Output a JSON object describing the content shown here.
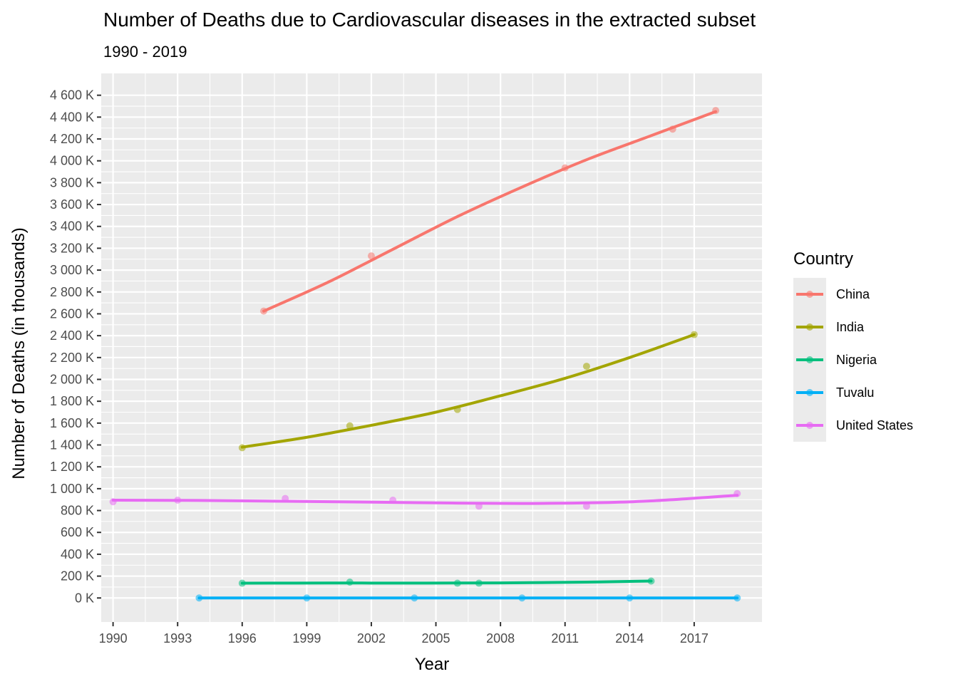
{
  "chart_data": {
    "type": "line",
    "title": "Number of Deaths due to Cardiovascular diseases in the extracted subset",
    "subtitle": "1990 - 2019",
    "xlabel": "Year",
    "ylabel": "Number of Deaths (in thousands)",
    "xlim": [
      1989.45,
      2020.15
    ],
    "ylim": [
      -220,
      4800
    ],
    "x_ticks": [
      1990,
      1993,
      1996,
      1999,
      2002,
      2005,
      2008,
      2011,
      2014,
      2017
    ],
    "y_ticks": [
      0,
      200,
      400,
      600,
      800,
      1000,
      1200,
      1400,
      1600,
      1800,
      2000,
      2200,
      2400,
      2600,
      2800,
      3000,
      3200,
      3400,
      3600,
      3800,
      4000,
      4200,
      4400,
      4600
    ],
    "y_tick_labels": [
      "0 K",
      "200 K",
      "400 K",
      "600 K",
      "800 K",
      "1 000 K",
      "1 200 K",
      "1 400 K",
      "1 600 K",
      "1 800 K",
      "2 000 K",
      "2 200 K",
      "2 400 K",
      "2 600 K",
      "2 800 K",
      "3 000 K",
      "3 200 K",
      "3 400 K",
      "3 600 K",
      "3 800 K",
      "4 000 K",
      "4 200 K",
      "4 400 K",
      "4 600 K"
    ],
    "grid": true,
    "legend": {
      "title": "Country",
      "position": "right"
    },
    "series": [
      {
        "name": "China",
        "color": "#F8766D",
        "points": [
          [
            1997,
            2625
          ],
          [
            2002,
            3130
          ],
          [
            2011,
            3935
          ],
          [
            2016,
            4290
          ],
          [
            2018,
            4460
          ]
        ],
        "trend": [
          [
            1997,
            2625
          ],
          [
            2000,
            2890
          ],
          [
            2003,
            3190
          ],
          [
            2006,
            3490
          ],
          [
            2009,
            3760
          ],
          [
            2012,
            4010
          ],
          [
            2015,
            4230
          ],
          [
            2018,
            4450
          ]
        ]
      },
      {
        "name": "India",
        "color": "#A3A500",
        "points": [
          [
            1996,
            1375
          ],
          [
            2001,
            1575
          ],
          [
            2006,
            1725
          ],
          [
            2012,
            2120
          ],
          [
            2017,
            2410
          ]
        ],
        "trend": [
          [
            1996,
            1380
          ],
          [
            1999,
            1470
          ],
          [
            2002,
            1580
          ],
          [
            2005,
            1700
          ],
          [
            2008,
            1850
          ],
          [
            2011,
            2010
          ],
          [
            2014,
            2200
          ],
          [
            2017,
            2410
          ]
        ]
      },
      {
        "name": "Nigeria",
        "color": "#00BF7D",
        "points": [
          [
            1996,
            135
          ],
          [
            2001,
            145
          ],
          [
            2006,
            135
          ],
          [
            2007,
            135
          ],
          [
            2015,
            155
          ]
        ],
        "trend": [
          [
            1996,
            135
          ],
          [
            2000,
            137
          ],
          [
            2004,
            136
          ],
          [
            2008,
            138
          ],
          [
            2012,
            145
          ],
          [
            2015,
            155
          ]
        ]
      },
      {
        "name": "Tuvalu",
        "color": "#00B0F6",
        "points": [
          [
            1994,
            0
          ],
          [
            1999,
            0
          ],
          [
            2004,
            0
          ],
          [
            2009,
            0
          ],
          [
            2014,
            0
          ],
          [
            2019,
            0
          ]
        ],
        "trend": [
          [
            1994,
            0
          ],
          [
            2019,
            0
          ]
        ]
      },
      {
        "name": "United States",
        "color": "#E76BF3",
        "points": [
          [
            1990,
            880
          ],
          [
            1993,
            895
          ],
          [
            1998,
            910
          ],
          [
            2003,
            895
          ],
          [
            2007,
            840
          ],
          [
            2012,
            840
          ],
          [
            2019,
            955
          ]
        ],
        "trend": [
          [
            1990,
            895
          ],
          [
            1994,
            892
          ],
          [
            1998,
            885
          ],
          [
            2002,
            877
          ],
          [
            2006,
            868
          ],
          [
            2009,
            865
          ],
          [
            2012,
            870
          ],
          [
            2015,
            888
          ],
          [
            2019,
            940
          ]
        ]
      }
    ]
  }
}
